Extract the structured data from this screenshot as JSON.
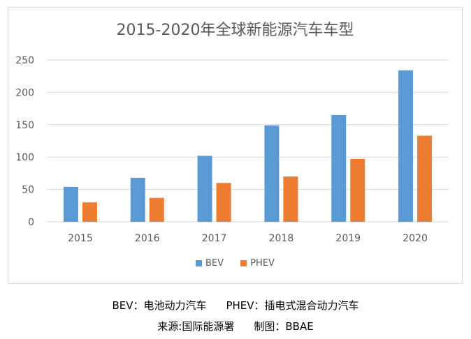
{
  "chart_data": {
    "type": "bar",
    "title": "2015-2020年全球新能源汽车车型",
    "categories": [
      "2015",
      "2016",
      "2017",
      "2018",
      "2019",
      "2020"
    ],
    "series": [
      {
        "name": "BEV",
        "color": "#5b9bd5",
        "values": [
          54,
          68,
          102,
          149,
          165,
          234
        ]
      },
      {
        "name": "PHEV",
        "color": "#ed7d31",
        "values": [
          30,
          37,
          60,
          70,
          97,
          133
        ]
      }
    ],
    "ylim": [
      0,
      250
    ],
    "yticks": [
      0,
      50,
      100,
      150,
      200,
      250
    ],
    "grid": true,
    "legend": "bottom"
  },
  "caption": {
    "bev_def": "BEV：电池动力汽车",
    "phev_def": "PHEV：插电式混合动力汽车",
    "source": "来源:国际能源署",
    "made_by": "制图：BBAE"
  }
}
